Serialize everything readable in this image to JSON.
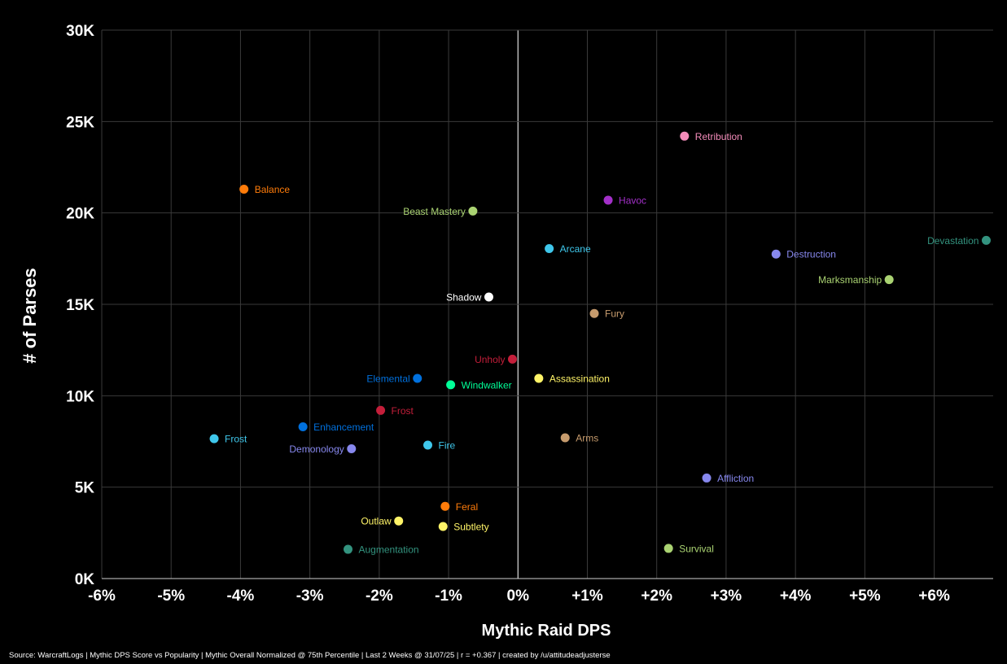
{
  "chart_data": {
    "type": "scatter",
    "xlabel": "Mythic Raid DPS",
    "ylabel": "# of Parses",
    "xlim": [
      -6,
      6.85
    ],
    "ylim": [
      0,
      30000
    ],
    "x_ticks": [
      -6,
      -5,
      -4,
      -3,
      -2,
      -1,
      0,
      1,
      2,
      3,
      4,
      5,
      6
    ],
    "x_tick_labels": [
      "-6%",
      "-5%",
      "-4%",
      "-3%",
      "-2%",
      "-1%",
      "0%",
      "+1%",
      "+2%",
      "+3%",
      "+4%",
      "+5%",
      "+6%"
    ],
    "y_ticks": [
      0,
      5000,
      10000,
      15000,
      20000,
      25000,
      30000
    ],
    "y_tick_labels": [
      "0K",
      "5K",
      "10K",
      "15K",
      "20K",
      "25K",
      "30K"
    ],
    "grid": true,
    "background": "#000000",
    "points": [
      {
        "label": "Retribution",
        "x": 2.4,
        "y": 24200,
        "color": "#F48CBA",
        "side": "right"
      },
      {
        "label": "Balance",
        "x": -3.95,
        "y": 21300,
        "color": "#FF7C0A",
        "side": "right"
      },
      {
        "label": "Havoc",
        "x": 1.3,
        "y": 20700,
        "color": "#A330C9",
        "side": "right"
      },
      {
        "label": "Beast Mastery",
        "x": -0.65,
        "y": 20100,
        "color": "#AAD372",
        "side": "left"
      },
      {
        "label": "Devastation",
        "x": 6.75,
        "y": 18500,
        "color": "#33937F",
        "side": "left"
      },
      {
        "label": "Arcane",
        "x": 0.45,
        "y": 18050,
        "color": "#3FC7EB",
        "side": "right"
      },
      {
        "label": "Destruction",
        "x": 3.72,
        "y": 17750,
        "color": "#8788EE",
        "side": "right"
      },
      {
        "label": "Marksmanship",
        "x": 5.35,
        "y": 16350,
        "color": "#AAD372",
        "side": "left"
      },
      {
        "label": "Shadow",
        "x": -0.42,
        "y": 15400,
        "color": "#FFFFFF",
        "side": "left"
      },
      {
        "label": "Fury",
        "x": 1.1,
        "y": 14500,
        "color": "#C69B6D",
        "side": "right"
      },
      {
        "label": "Unholy",
        "x": -0.08,
        "y": 12000,
        "color": "#C41E3A",
        "side": "left"
      },
      {
        "label": "Elemental",
        "x": -1.45,
        "y": 10950,
        "color": "#0070DD",
        "side": "left"
      },
      {
        "label": "Assassination",
        "x": 0.3,
        "y": 10950,
        "color": "#FFF468",
        "side": "right"
      },
      {
        "label": "Windwalker",
        "x": -0.97,
        "y": 10600,
        "color": "#00FF98",
        "side": "right"
      },
      {
        "label": "Frost",
        "x": -1.98,
        "y": 9200,
        "color": "#C41E3A",
        "side": "right"
      },
      {
        "label": "Enhancement",
        "x": -3.1,
        "y": 8300,
        "color": "#0070DD",
        "side": "right"
      },
      {
        "label": "Frost",
        "x": -4.38,
        "y": 7650,
        "color": "#3FC7EB",
        "side": "right"
      },
      {
        "label": "Arms",
        "x": 0.68,
        "y": 7700,
        "color": "#C69B6D",
        "side": "right"
      },
      {
        "label": "Fire",
        "x": -1.3,
        "y": 7300,
        "color": "#3FC7EB",
        "side": "right"
      },
      {
        "label": "Demonology",
        "x": -2.4,
        "y": 7100,
        "color": "#8788EE",
        "side": "left"
      },
      {
        "label": "Affliction",
        "x": 2.72,
        "y": 5500,
        "color": "#8788EE",
        "side": "right"
      },
      {
        "label": "Feral",
        "x": -1.05,
        "y": 3950,
        "color": "#FF7C0A",
        "side": "right"
      },
      {
        "label": "Outlaw",
        "x": -1.72,
        "y": 3150,
        "color": "#FFF468",
        "side": "left"
      },
      {
        "label": "Subtlety",
        "x": -1.08,
        "y": 2850,
        "color": "#FFF468",
        "side": "right"
      },
      {
        "label": "Survival",
        "x": 2.17,
        "y": 1650,
        "color": "#AAD372",
        "side": "right"
      },
      {
        "label": "Augmentation",
        "x": -2.45,
        "y": 1600,
        "color": "#33937F",
        "side": "right"
      }
    ]
  },
  "source_note": "Source: WarcraftLogs | Mythic DPS Score vs Popularity | Mythic Overall Normalized @ 75th Percentile | Last 2 Weeks @ 31/07/25 | r = +0.367 | created by /u/attitudeadjusterse"
}
